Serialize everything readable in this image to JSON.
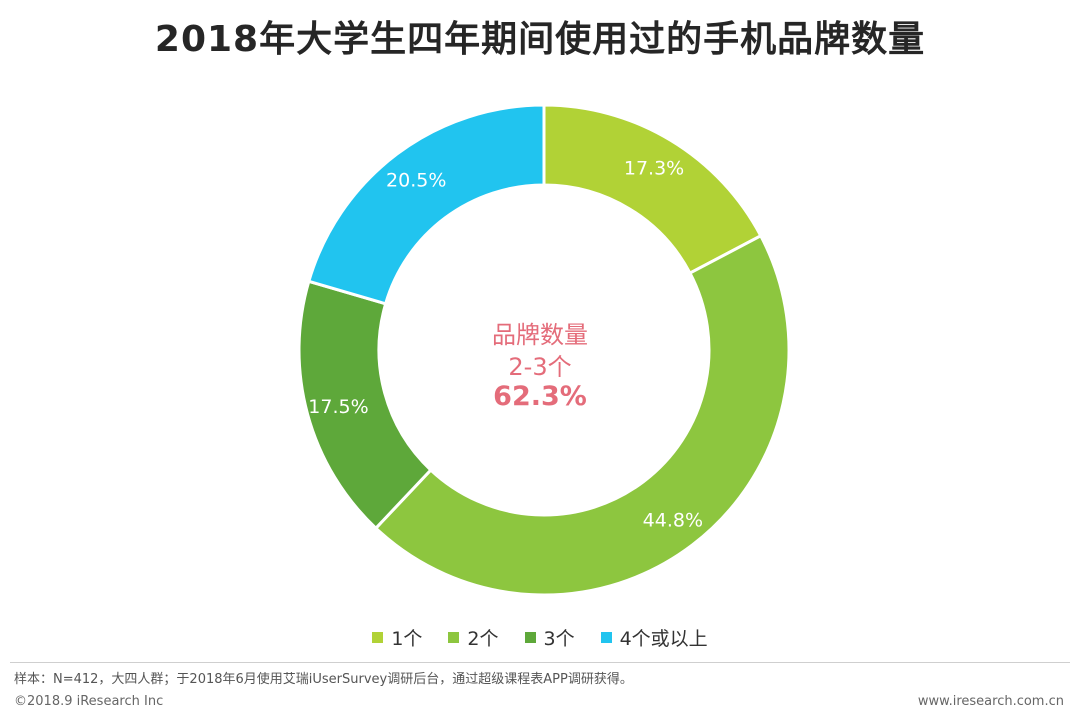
{
  "chart_data": {
    "type": "pie",
    "title": "2018年大学生四年期间使用过的手机品牌数量",
    "categories": [
      "1个",
      "2个",
      "3个",
      "4个或以上"
    ],
    "values": [
      17.3,
      44.8,
      17.5,
      20.5
    ],
    "labels": [
      "17.3%",
      "44.8%",
      "17.5%",
      "20.5%"
    ],
    "colors": [
      "#b1d236",
      "#8dc63f",
      "#5ea83a",
      "#21c4ef"
    ],
    "legend_position": "bottom",
    "center": {
      "line1": "品牌数量",
      "line2": "2-3个",
      "line3": "62.3%",
      "color": "#e46c7a"
    }
  },
  "footer": {
    "note": "样本：N=412，大四人群；于2018年6月使用艾瑞iUserSurvey调研后台，通过超级课程表APP调研获得。",
    "copyright": "©2018.9 iResearch Inc",
    "website": "www.iresearch.com.cn"
  }
}
